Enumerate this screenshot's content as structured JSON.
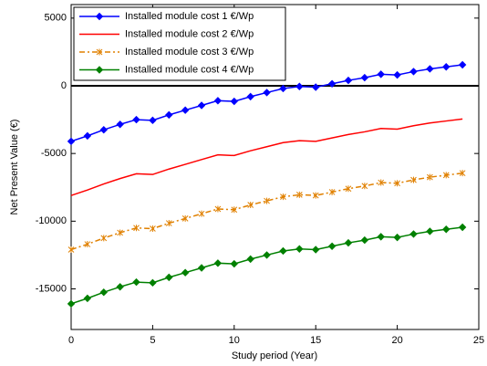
{
  "chart_data": {
    "type": "line",
    "xlabel": "Study period (Year)",
    "ylabel": "Net Present Value (€)",
    "x": [
      0,
      1,
      2,
      3,
      4,
      5,
      6,
      7,
      8,
      9,
      10,
      11,
      12,
      13,
      14,
      15,
      16,
      17,
      18,
      19,
      20,
      21,
      22,
      23,
      24
    ],
    "series": [
      {
        "name": "Installed module cost 1 €/Wp",
        "color": "#0000ff",
        "marker": "diamond",
        "dash": "solid",
        "values": [
          -4100,
          -3700,
          -3250,
          -2850,
          -2500,
          -2550,
          -2150,
          -1800,
          -1450,
          -1100,
          -1150,
          -800,
          -500,
          -200,
          -50,
          -100,
          150,
          400,
          600,
          850,
          800,
          1050,
          1250,
          1400,
          1550
        ]
      },
      {
        "name": "Installed module cost 2 €/Wp",
        "color": "#ff0000",
        "marker": "none",
        "dash": "solid",
        "values": [
          -8100,
          -7700,
          -7250,
          -6850,
          -6500,
          -6550,
          -6150,
          -5800,
          -5450,
          -5100,
          -5150,
          -4800,
          -4500,
          -4200,
          -4050,
          -4100,
          -3850,
          -3600,
          -3400,
          -3150,
          -3200,
          -2950,
          -2750,
          -2600,
          -2450
        ]
      },
      {
        "name": "Installed module cost 3 €/Wp",
        "color": "#e08000",
        "marker": "x",
        "dash": "dashdot",
        "values": [
          -12100,
          -11700,
          -11250,
          -10850,
          -10500,
          -10550,
          -10150,
          -9800,
          -9450,
          -9100,
          -9150,
          -8800,
          -8500,
          -8200,
          -8050,
          -8100,
          -7850,
          -7600,
          -7400,
          -7150,
          -7200,
          -6950,
          -6750,
          -6600,
          -6450
        ]
      },
      {
        "name": "Installed module cost 4 €/Wp",
        "color": "#008000",
        "marker": "diamond",
        "dash": "solid",
        "values": [
          -16100,
          -15700,
          -15250,
          -14850,
          -14500,
          -14550,
          -14150,
          -13800,
          -13450,
          -13100,
          -13150,
          -12800,
          -12500,
          -12200,
          -12050,
          -12100,
          -11850,
          -11600,
          -11400,
          -11150,
          -11200,
          -10950,
          -10750,
          -10600,
          -10450
        ]
      }
    ],
    "xlim": [
      0,
      25
    ],
    "xticks": [
      0,
      5,
      10,
      15,
      20,
      25
    ],
    "ylim": [
      -18000,
      6000
    ],
    "yticks": [
      -15000,
      -10000,
      -5000,
      0,
      5000
    ],
    "hline": 0,
    "grid": false,
    "legend": "upper left"
  }
}
